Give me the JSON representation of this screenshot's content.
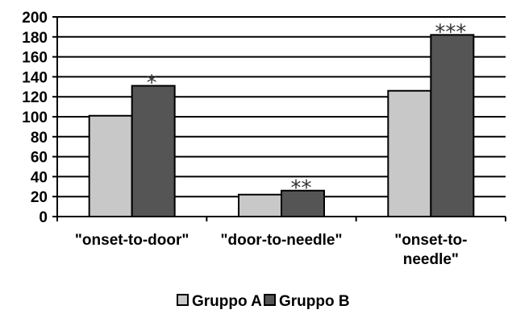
{
  "chart_data": {
    "type": "bar",
    "categories": [
      [
        "\"onset-to-door\""
      ],
      [
        "\"door-to-needle\""
      ],
      [
        "\"onset-to-",
        "needle\""
      ]
    ],
    "series": [
      {
        "name": "Gruppo A",
        "color": "#c8c8c8",
        "values": [
          101,
          22,
          126
        ]
      },
      {
        "name": "Gruppo B",
        "color": "#555555",
        "values": [
          131,
          26,
          182
        ]
      }
    ],
    "annotations": [
      "*",
      "**",
      "***"
    ],
    "ylim": [
      0,
      200
    ],
    "yticks": [
      0,
      20,
      40,
      60,
      80,
      100,
      120,
      140,
      160,
      180,
      200
    ],
    "grid": true,
    "legend_position": "bottom"
  }
}
